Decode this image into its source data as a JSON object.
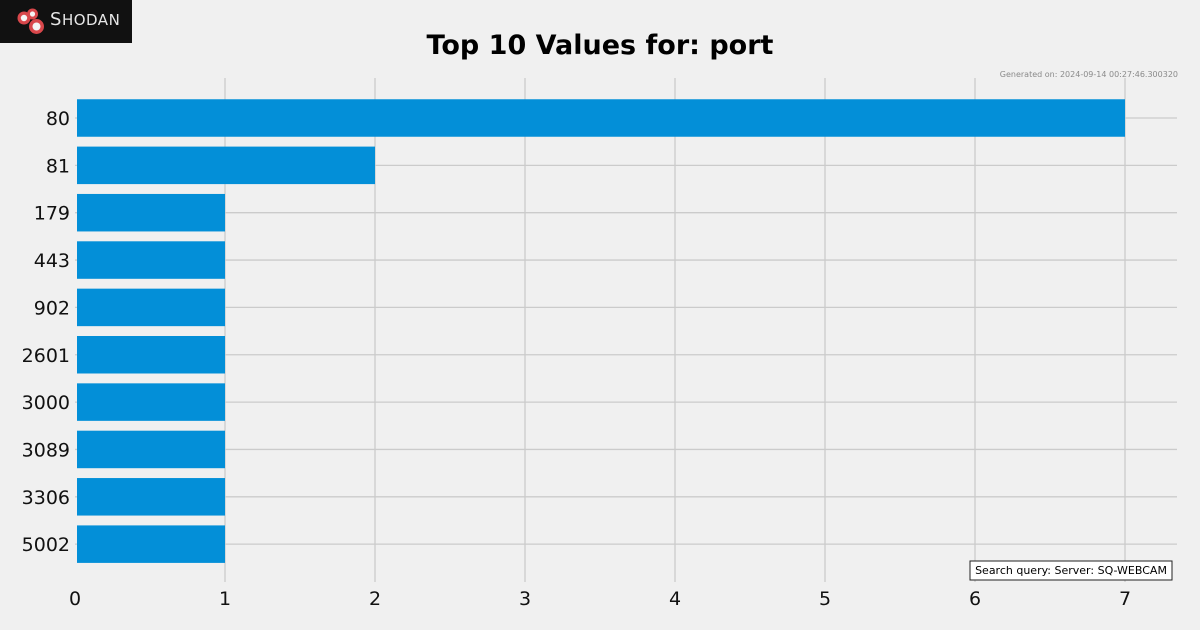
{
  "logo": {
    "text": "SHODAN",
    "first_letter": "S",
    "rest": "HODAN",
    "icon": "shodan-logo-icon"
  },
  "generated_text": "Generated on: 2024-09-14 00:27:46.300320",
  "query_text": "Search query: Server: SQ-WEBCAM",
  "colors": {
    "bar": "#038fd8",
    "background": "#f0f0f0",
    "grid": "#cbcbcb",
    "logo_background": "#111111",
    "logo_red": "#d8474b"
  },
  "chart_data": {
    "type": "bar",
    "orientation": "horizontal",
    "title": "Top 10 Values for: port",
    "categories": [
      "80",
      "81",
      "179",
      "443",
      "902",
      "2601",
      "3000",
      "3089",
      "3306",
      "5002"
    ],
    "values": [
      7,
      2,
      1,
      1,
      1,
      1,
      1,
      1,
      1,
      1
    ],
    "xlim": [
      0,
      7.33
    ],
    "x_ticks": [
      0,
      1,
      2,
      3,
      4,
      5,
      6,
      7
    ],
    "xlabel": "",
    "ylabel": "",
    "grid": true
  }
}
